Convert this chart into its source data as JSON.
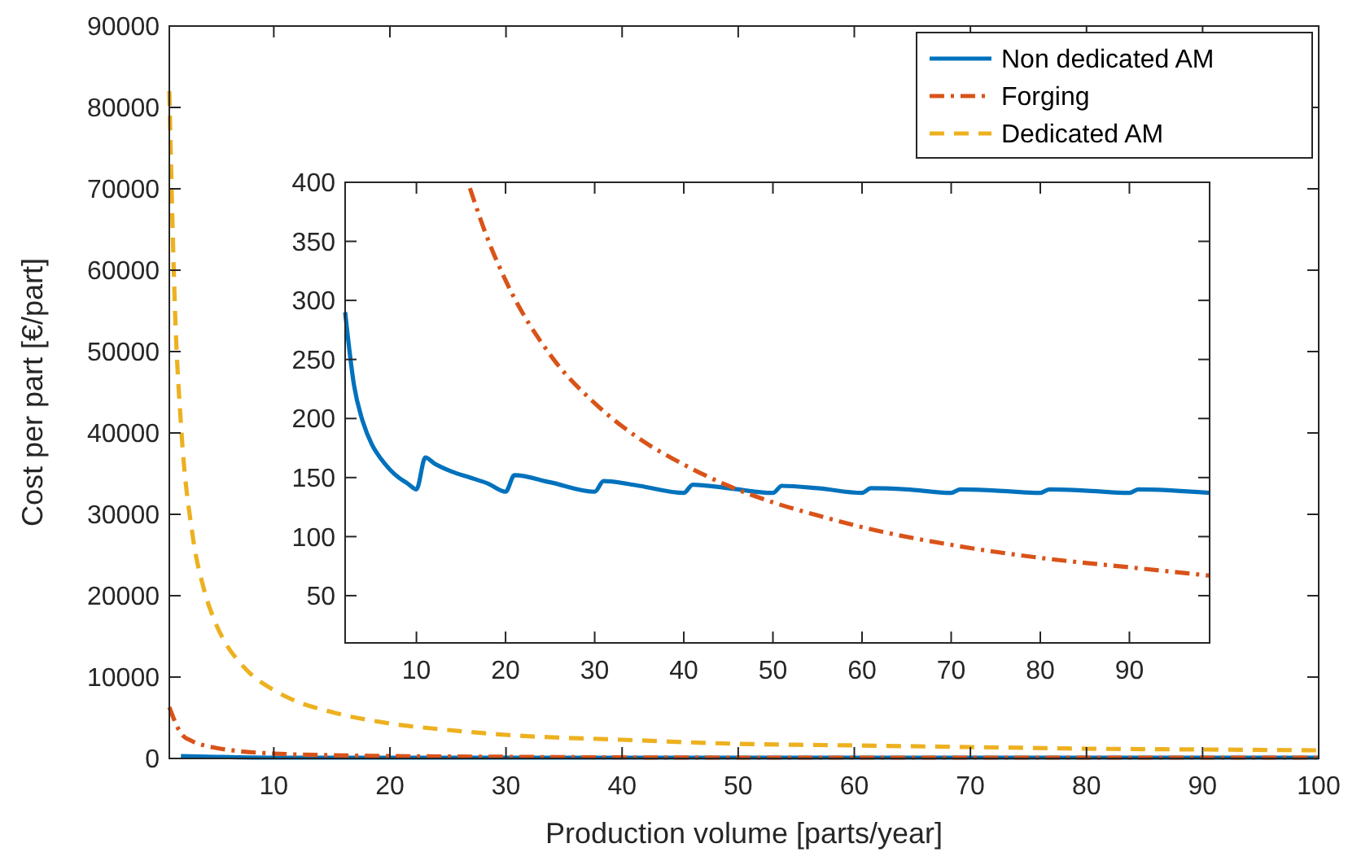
{
  "chart_data": [
    {
      "type": "line",
      "xlabel": "Production volume [parts/year]",
      "ylabel": "Cost per part [€/part]",
      "xlim": [
        1,
        100
      ],
      "ylim": [
        0,
        90000
      ],
      "xticks": [
        10,
        20,
        30,
        40,
        50,
        60,
        70,
        80,
        90,
        100
      ],
      "yticks": [
        0,
        10000,
        20000,
        30000,
        40000,
        50000,
        60000,
        70000,
        80000,
        90000
      ],
      "grid": false,
      "legend": "top right",
      "series": [
        {
          "name": "Non dedicated AM",
          "color": "#0072bd",
          "line_style": "solid",
          "x": [
            2,
            5,
            10,
            100
          ],
          "values": [
            300,
            200,
            100,
            100
          ]
        },
        {
          "name": "Forging",
          "color": "#d95319",
          "line_style": "dashdot",
          "x": [
            1,
            2,
            3,
            4,
            5,
            7,
            10,
            15,
            20,
            30,
            50,
            70,
            100
          ],
          "values": [
            6300,
            3100,
            2100,
            1600,
            1300,
            900,
            600,
            400,
            300,
            200,
            100,
            100,
            100
          ]
        },
        {
          "name": "Dedicated AM",
          "color": "#edb120",
          "line_style": "dashed",
          "x": [
            1,
            1.5,
            2,
            3,
            4,
            5,
            6,
            7,
            8,
            10,
            12,
            15,
            20,
            25,
            30,
            40,
            50,
            60,
            70,
            80,
            90,
            100
          ],
          "values": [
            82000,
            54700,
            41100,
            27500,
            20700,
            16600,
            13800,
            11900,
            10400,
            8400,
            7000,
            5700,
            4300,
            3500,
            2900,
            2300,
            1800,
            1600,
            1400,
            1200,
            1100,
            1000
          ]
        }
      ]
    },
    {
      "type": "line",
      "xlim": [
        2,
        99
      ],
      "ylim": [
        10,
        400
      ],
      "xticks": [
        10,
        20,
        30,
        40,
        50,
        60,
        70,
        80,
        90
      ],
      "yticks": [
        50,
        100,
        150,
        200,
        250,
        300,
        350,
        400
      ],
      "grid": false,
      "series": [
        {
          "color": "#0072bd",
          "line_style": "solid",
          "x": [
            2,
            3,
            4,
            5,
            6,
            7,
            8,
            9,
            10,
            11,
            12,
            14,
            16,
            18,
            20,
            21,
            25,
            30,
            31,
            35,
            40,
            41,
            45,
            50,
            51,
            55,
            60,
            61,
            65,
            70,
            71,
            75,
            80,
            81,
            85,
            90,
            91,
            99
          ],
          "values": [
            290,
            228,
            197,
            178,
            166,
            157,
            150,
            145,
            140,
            167,
            162,
            155,
            150,
            145,
            138,
            152,
            146,
            138,
            147,
            143,
            137,
            144,
            141,
            137,
            143,
            141,
            137,
            141,
            140,
            137,
            140,
            139,
            137,
            140,
            139,
            137,
            140,
            137
          ]
        },
        {
          "color": "#d95319",
          "line_style": "dashdot",
          "x": [
            16,
            18,
            20,
            25,
            30,
            35,
            40,
            45,
            50,
            55,
            60,
            70,
            80,
            90,
            99
          ],
          "values": [
            395,
            352,
            317,
            254,
            213,
            183,
            161,
            143,
            129,
            118,
            108,
            93,
            82,
            74,
            67
          ]
        }
      ]
    }
  ]
}
